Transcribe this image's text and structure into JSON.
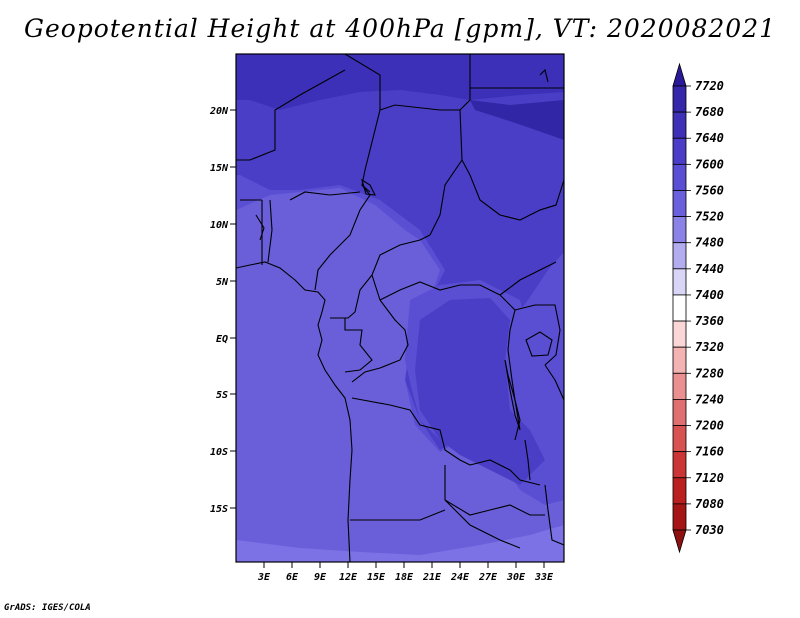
{
  "title": "Geopotential Height at 400hPa [gpm], VT: 2020082021",
  "footer": "GrADS: IGES/COLA",
  "map": {
    "region": "Central Africa",
    "lat_labels": [
      "20N",
      "15N",
      "10N",
      "5N",
      "EQ",
      "5S",
      "10S",
      "15S"
    ],
    "lon_labels": [
      "3E",
      "6E",
      "9E",
      "12E",
      "15E",
      "18E",
      "21E",
      "24E",
      "27E",
      "30E",
      "33E"
    ],
    "field_colors": {
      "level_7520": "#6a5fd9",
      "level_7560": "#5a4ed3",
      "level_7600": "#4a3ec7",
      "level_7640": "#3c30b8",
      "level_7680": "#3127a6",
      "level_7480": "#7c72e6"
    }
  },
  "colorbar": {
    "levels": [
      "7720",
      "7680",
      "7640",
      "7600",
      "7560",
      "7520",
      "7480",
      "7440",
      "7400",
      "7360",
      "7320",
      "7280",
      "7240",
      "7200",
      "7160",
      "7120",
      "7080",
      "7030"
    ],
    "colors": [
      "#2a1a9a",
      "#3526aa",
      "#3f30b8",
      "#4b3dc8",
      "#5a4ed4",
      "#6a60dd",
      "#8a82e6",
      "#b3adf0",
      "#d8d5f7",
      "#ffffff",
      "#fad6d6",
      "#f3b3b3",
      "#ea9090",
      "#e07070",
      "#d85252",
      "#cc3535",
      "#bb2020",
      "#a51515",
      "#8e1010"
    ]
  }
}
